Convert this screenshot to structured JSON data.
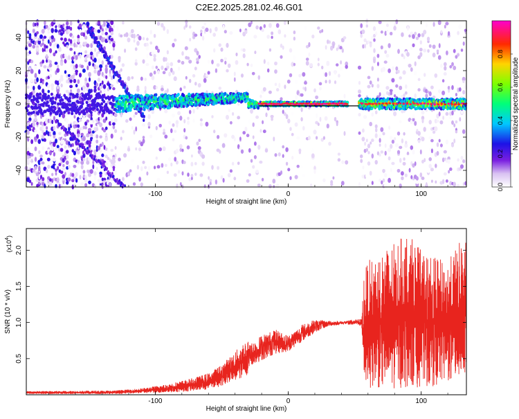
{
  "title": "C2E2.2025.281.02.46.G01",
  "colors": {
    "snr_line": "#e8241e",
    "axis": "#000000",
    "background": "#ffffff",
    "spectro_bg": "#ffffff"
  },
  "chart_data": [
    {
      "type": "heatmap",
      "name": "spectrogram",
      "xlabel": "Height of straight line (km)",
      "ylabel": "Frequency (Hz)",
      "xlim": [
        -197,
        134
      ],
      "ylim": [
        -50,
        50
      ],
      "xticks": [
        -100,
        0,
        100
      ],
      "xtick_labels": [
        "-100",
        "0",
        "100"
      ],
      "yticks": [
        -40,
        -20,
        0,
        20,
        40
      ],
      "ytick_labels": [
        "-40",
        "-20",
        "0",
        "20",
        "40"
      ],
      "zlim": [
        0,
        1
      ],
      "gap_km": [
        45,
        53
      ],
      "colorbar": {
        "label": "Normalized spectral amplitude",
        "ticks": [
          0.0,
          0.2,
          0.4,
          0.6,
          0.8
        ],
        "tick_labels": [
          "0.0",
          "0.2",
          "0.4",
          "0.6",
          "0.8"
        ],
        "stops": [
          {
            "v": 0.0,
            "c": "#ffffff"
          },
          {
            "v": 0.08,
            "c": "#d9c2f2"
          },
          {
            "v": 0.16,
            "c": "#7a1fe0"
          },
          {
            "v": 0.26,
            "c": "#1d12e6"
          },
          {
            "v": 0.38,
            "c": "#00c8ff"
          },
          {
            "v": 0.5,
            "c": "#00ff7a"
          },
          {
            "v": 0.62,
            "c": "#7dff00"
          },
          {
            "v": 0.74,
            "c": "#ffd400"
          },
          {
            "v": 0.86,
            "c": "#ff2a00"
          },
          {
            "v": 1.0,
            "c": "#ff00cc"
          }
        ]
      }
    },
    {
      "type": "line",
      "name": "snr",
      "xlabel": "Height of straight line (km)",
      "ylabel": "SNR (10 * v/v)",
      "y_multiplier": "(x10",
      "y_multiplier_exp": "4",
      "y_multiplier_close": ")",
      "xlim": [
        -197,
        134
      ],
      "ylim": [
        0,
        23000
      ],
      "xticks": [
        -100,
        0,
        100
      ],
      "xtick_labels": [
        "-100",
        "0",
        "100"
      ],
      "yticks": [
        5000,
        10000,
        15000,
        20000
      ],
      "ytick_labels": [
        "0.5",
        "1.0",
        "1.5",
        "2.0"
      ],
      "series": [
        {
          "name": "SNR",
          "envelope_x": [
            -197,
            -130,
            -110,
            -90,
            -70,
            -60,
            -50,
            -40,
            -30,
            -20,
            -10,
            0,
            10,
            20,
            30,
            40,
            50,
            55,
            57,
            60,
            70,
            80,
            90,
            100,
            110,
            120,
            130,
            134
          ],
          "envelope_low": [
            100,
            100,
            200,
            300,
            500,
            700,
            1200,
            1800,
            2800,
            3500,
            4500,
            5200,
            6500,
            8000,
            9200,
            9600,
            9700,
            9500,
            1500,
            1000,
            800,
            800,
            900,
            1000,
            1200,
            1500,
            1800,
            2000
          ],
          "envelope_high": [
            500,
            600,
            900,
            1500,
            2400,
            3000,
            4200,
            6000,
            8000,
            9500,
            10200,
            9000,
            10500,
            11000,
            10500,
            10300,
            10400,
            10500,
            17000,
            18500,
            20000,
            21000,
            22500,
            20000,
            19000,
            18500,
            21500,
            22000
          ]
        }
      ]
    }
  ]
}
